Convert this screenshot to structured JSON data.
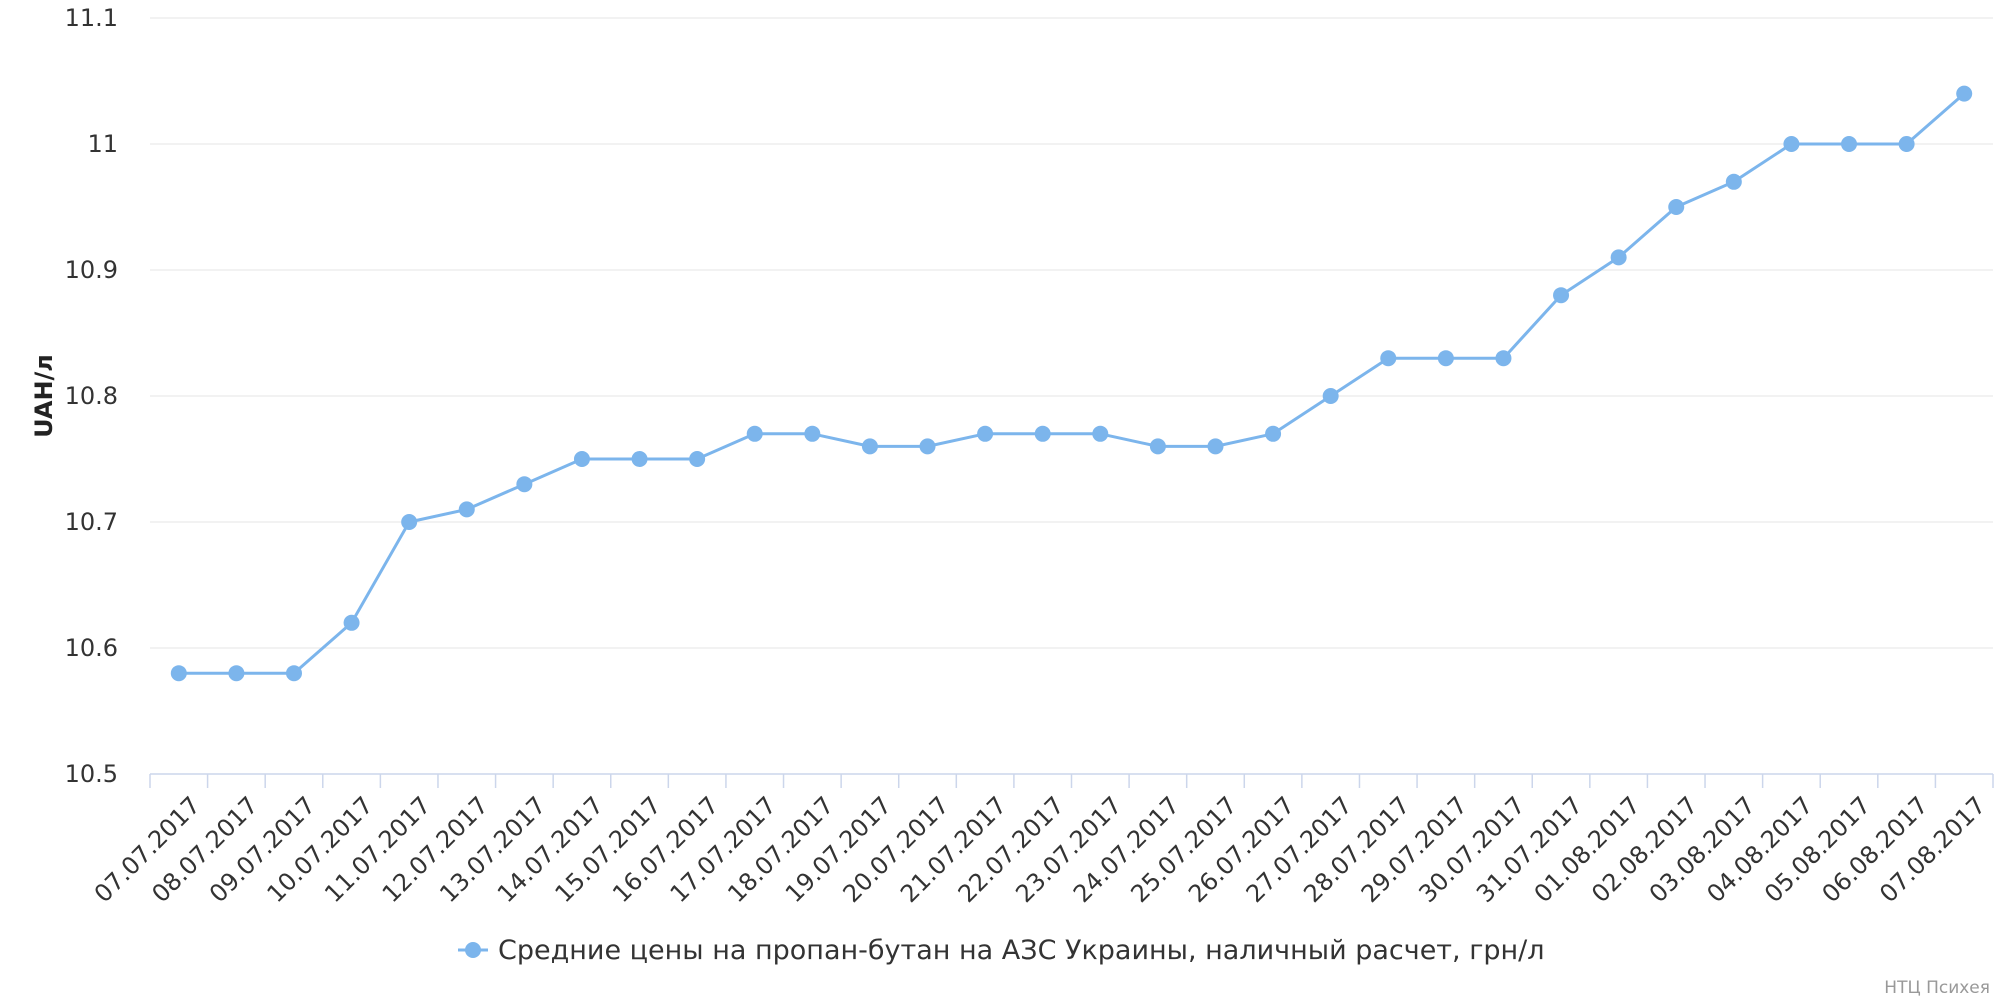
{
  "chart_data": {
    "type": "line",
    "title": "",
    "xlabel": "",
    "ylabel": "UAH/л",
    "ylim": [
      10.5,
      11.1
    ],
    "y_ticks": [
      "10.5",
      "10.6",
      "10.7",
      "10.8",
      "10.9",
      "11",
      "11.1"
    ],
    "grid": true,
    "legend_position": "bottom-center",
    "categories": [
      "07.07.2017",
      "08.07.2017",
      "09.07.2017",
      "10.07.2017",
      "11.07.2017",
      "12.07.2017",
      "13.07.2017",
      "14.07.2017",
      "15.07.2017",
      "16.07.2017",
      "17.07.2017",
      "18.07.2017",
      "19.07.2017",
      "20.07.2017",
      "21.07.2017",
      "22.07.2017",
      "23.07.2017",
      "24.07.2017",
      "25.07.2017",
      "26.07.2017",
      "27.07.2017",
      "28.07.2017",
      "29.07.2017",
      "30.07.2017",
      "31.07.2017",
      "01.08.2017",
      "02.08.2017",
      "03.08.2017",
      "04.08.2017",
      "05.08.2017",
      "06.08.2017",
      "07.08.2017"
    ],
    "series": [
      {
        "name": "Средние цены на пропан-бутан на АЗС Украины, наличный расчет, грн/л",
        "color": "#7cb5ec",
        "values": [
          10.58,
          10.58,
          10.58,
          10.62,
          10.7,
          10.71,
          10.73,
          10.75,
          10.75,
          10.75,
          10.77,
          10.77,
          10.76,
          10.76,
          10.77,
          10.77,
          10.77,
          10.76,
          10.76,
          10.77,
          10.8,
          10.83,
          10.83,
          10.83,
          10.88,
          10.91,
          10.95,
          10.97,
          11.0,
          11.0,
          11.0,
          11.04
        ]
      }
    ]
  },
  "credit": "НТЦ Психея",
  "colors": {
    "series": "#7cb5ec",
    "grid": "#e6e6e6",
    "axis": "#ccd6eb"
  }
}
